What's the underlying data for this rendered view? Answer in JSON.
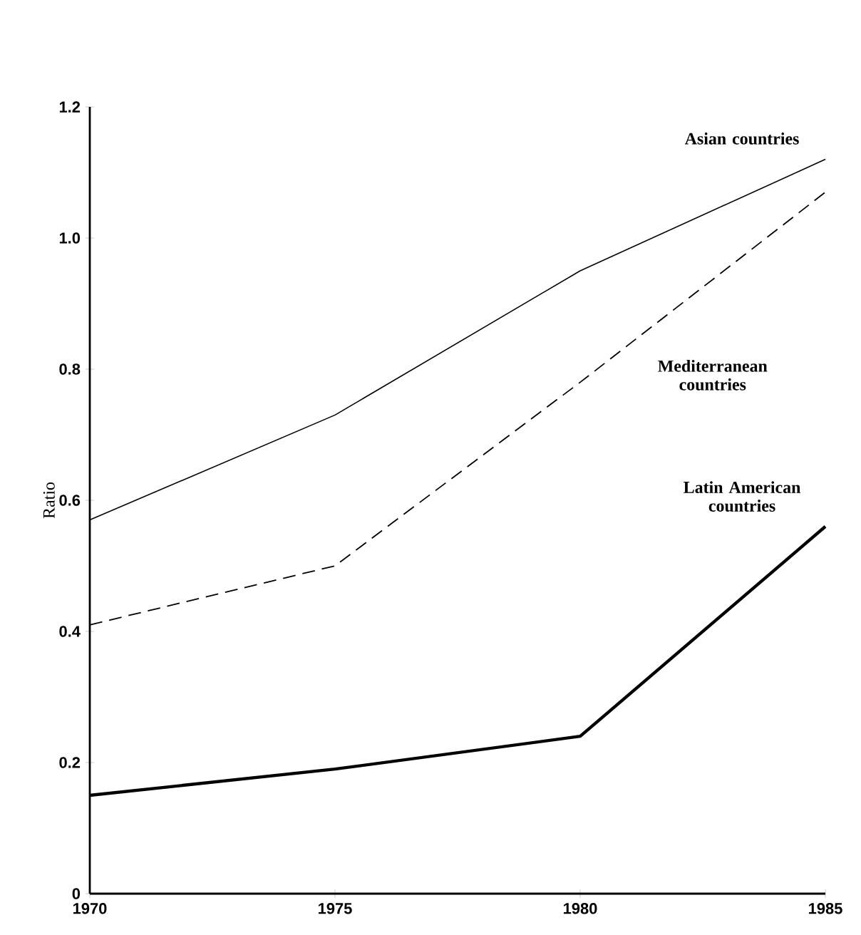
{
  "chart_data": {
    "type": "line",
    "ylabel": "Ratio",
    "x": [
      1970,
      1975,
      1980,
      1985
    ],
    "series": [
      {
        "name": "Asian countries",
        "color": "#000000",
        "line_style": "solid",
        "values": [
          0.57,
          0.73,
          0.95,
          1.12
        ]
      },
      {
        "name": "Mediterranean countries",
        "color": "#000000",
        "line_style": "dashed",
        "values": [
          0.41,
          0.5,
          0.78,
          1.07
        ]
      },
      {
        "name": "Latin American countries",
        "color": "#000000",
        "line_style": "solid",
        "values": [
          0.15,
          0.19,
          0.24,
          0.56
        ]
      }
    ],
    "xlim": [
      1970,
      1985
    ],
    "xticks": [
      1970,
      1975,
      1980,
      1985
    ],
    "ylim": [
      0,
      1.2
    ],
    "yticks": [
      0,
      0.2,
      0.4,
      0.6,
      0.8,
      {
        "value": 1.0,
        "label": "1.0"
      },
      1.2
    ],
    "grid": false,
    "marker": "none"
  }
}
